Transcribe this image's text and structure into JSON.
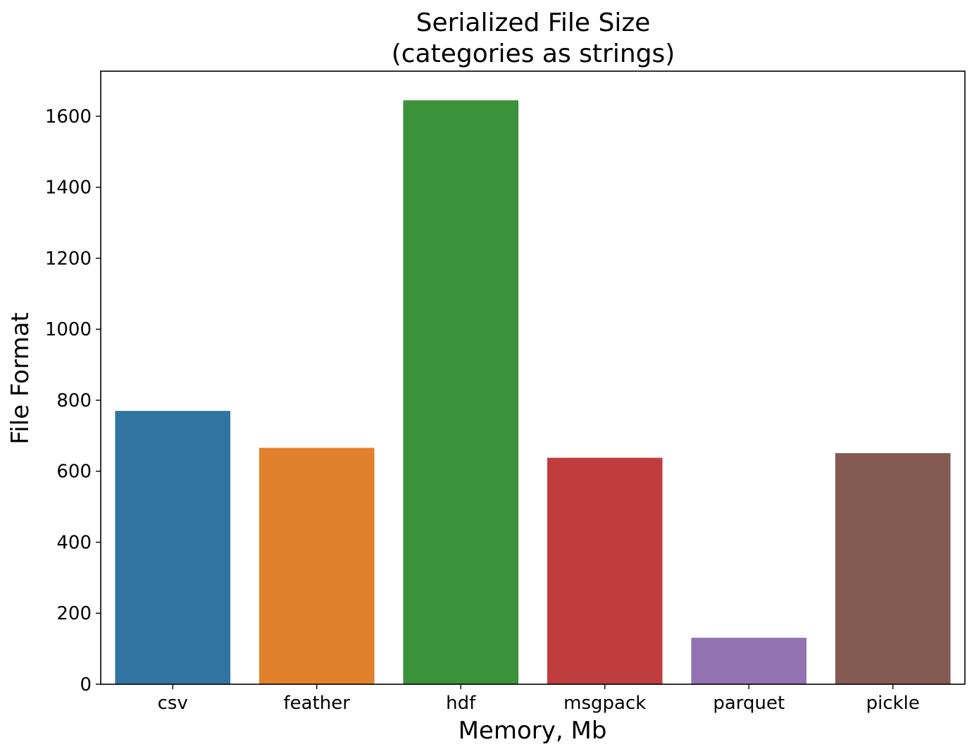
{
  "chart_data": {
    "type": "bar",
    "title_lines": [
      "Serialized File Size",
      "(categories as strings)"
    ],
    "xlabel": "Memory, Mb",
    "ylabel": "File Format",
    "categories": [
      "csv",
      "feather",
      "hdf",
      "msgpack",
      "parquet",
      "pickle"
    ],
    "values": [
      770,
      666,
      1645,
      638,
      131,
      651
    ],
    "colors": [
      "#3274a1",
      "#e1812c",
      "#3a923a",
      "#c03d3e",
      "#9372b2",
      "#845b53"
    ],
    "yticks": [
      0,
      200,
      400,
      600,
      800,
      1000,
      1200,
      1400,
      1600
    ],
    "ylim": [
      0,
      1727
    ],
    "grid": false,
    "legend": "none"
  }
}
